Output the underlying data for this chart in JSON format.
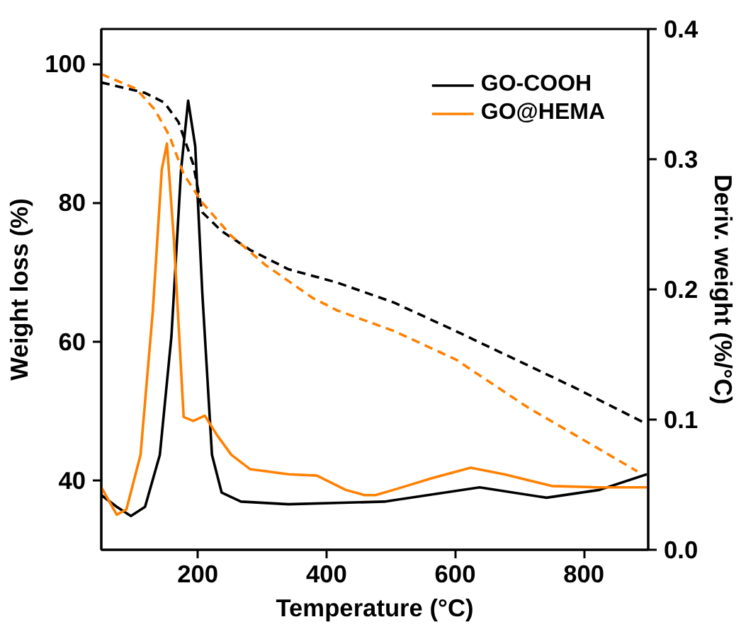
{
  "chart_data": {
    "type": "line",
    "xlabel": "Temperature (°C)",
    "ylabel": "Weight loss (%)",
    "y2label": "Deriv. weight (%/°C)",
    "xlim": [
      50,
      900
    ],
    "xticks": [
      200,
      400,
      600,
      800
    ],
    "ylim": [
      30,
      105
    ],
    "yticks": [
      40,
      60,
      80,
      100
    ],
    "y2lim": [
      0,
      0.4
    ],
    "y2ticks": [
      {
        "value": 0,
        "label": "0.0"
      },
      0.1,
      0.2,
      0.3,
      0.4
    ],
    "legend": "top right",
    "grid": false,
    "series": [
      {
        "name": "GO-COOH",
        "color": "#000000",
        "axis": "y2",
        "line_style": "solid",
        "x": [
          50,
          74,
          96,
          118,
          141,
          159,
          174,
          185,
          196,
          207,
          222,
          237,
          267,
          341,
          490,
          504,
          638,
          742,
          824,
          898
        ],
        "values": [
          0.042,
          0.033,
          0.026,
          0.033,
          0.073,
          0.164,
          0.292,
          0.345,
          0.31,
          0.197,
          0.073,
          0.044,
          0.037,
          0.035,
          0.037,
          0.038,
          0.048,
          0.04,
          0.046,
          0.058
        ]
      },
      {
        "name": "GO@HEMA",
        "color": "#ff8000",
        "axis": "y2",
        "line_style": "solid",
        "x": [
          50,
          74,
          89,
          111,
          130,
          144,
          152,
          163,
          178,
          193,
          211,
          230,
          252,
          281,
          341,
          385,
          430,
          459,
          476,
          504,
          564,
          624,
          676,
          750,
          824,
          898
        ],
        "values": [
          0.048,
          0.027,
          0.031,
          0.073,
          0.183,
          0.292,
          0.312,
          0.237,
          0.102,
          0.099,
          0.103,
          0.088,
          0.073,
          0.062,
          0.058,
          0.057,
          0.046,
          0.042,
          0.042,
          0.046,
          0.055,
          0.063,
          0.058,
          0.049,
          0.048,
          0.048
        ]
      },
      {
        "color": "#000000",
        "axis": "y",
        "line_style": "dashed",
        "x": [
          50,
          118,
          148,
          170,
          193,
          207,
          237,
          281,
          341,
          416,
          505,
          601,
          787,
          898
        ],
        "values": [
          97.3,
          95.8,
          94.4,
          91.6,
          85.5,
          78.6,
          75.9,
          73.2,
          70.4,
          68.5,
          65.6,
          61.5,
          53.3,
          48.1
        ]
      },
      {
        "color": "#ff8000",
        "axis": "y",
        "line_style": "dashed",
        "x": [
          50,
          104,
          133,
          156,
          178,
          207,
          252,
          304,
          378,
          416,
          505,
          601,
          713,
          883
        ],
        "values": [
          98.5,
          96.4,
          93.4,
          89.6,
          84.1,
          80.0,
          75.2,
          71.1,
          66.3,
          64.5,
          61.5,
          57.4,
          50.5,
          41.3
        ]
      }
    ]
  }
}
